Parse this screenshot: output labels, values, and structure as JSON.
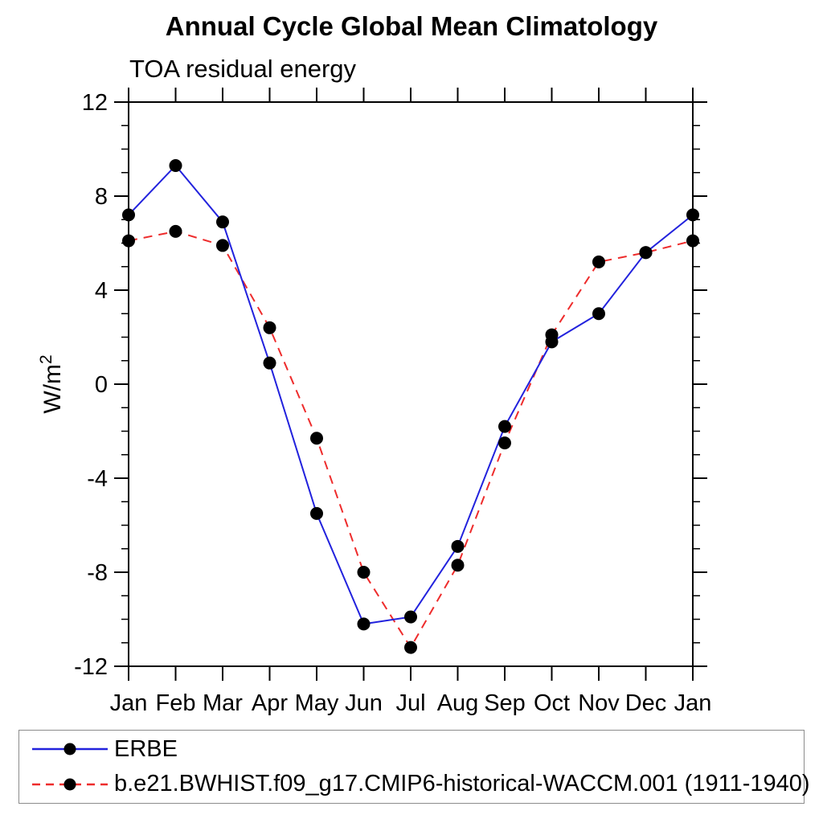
{
  "chart_data": {
    "type": "line",
    "title": "Annual Cycle Global Mean Climatology",
    "subtitle": "TOA residual energy",
    "ylabel": "W/m²",
    "ylabel_base": "W/m",
    "ylabel_sup": "2",
    "categories": [
      "Jan",
      "Feb",
      "Mar",
      "Apr",
      "May",
      "Jun",
      "Jul",
      "Aug",
      "Sep",
      "Oct",
      "Nov",
      "Dec",
      "Jan"
    ],
    "ylim": [
      -12,
      12
    ],
    "yticks": [
      12,
      8,
      4,
      0,
      -4,
      -8,
      -12
    ],
    "ytick_minor_step": 1,
    "grid": false,
    "legend_position": "bottom-box",
    "frame": true,
    "series": [
      {
        "name": "ERBE",
        "color": "#2222dd",
        "line_style": "solid",
        "marker": "filled-circle",
        "marker_color": "#000000",
        "values": [
          7.2,
          9.3,
          6.9,
          0.9,
          -5.5,
          -10.2,
          -9.9,
          -6.9,
          -1.8,
          1.8,
          3.0,
          5.6,
          7.2
        ]
      },
      {
        "name": "b.e21.BWHIST.f09_g17.CMIP6-historical-WACCM.001 (1911-1940)",
        "color": "#ee2c2c",
        "line_style": "dashed",
        "marker": "filled-circle",
        "marker_color": "#000000",
        "values": [
          6.1,
          6.5,
          5.9,
          2.4,
          -2.3,
          -8.0,
          -11.2,
          -7.7,
          -2.5,
          2.1,
          5.2,
          5.6,
          6.1
        ]
      }
    ]
  }
}
